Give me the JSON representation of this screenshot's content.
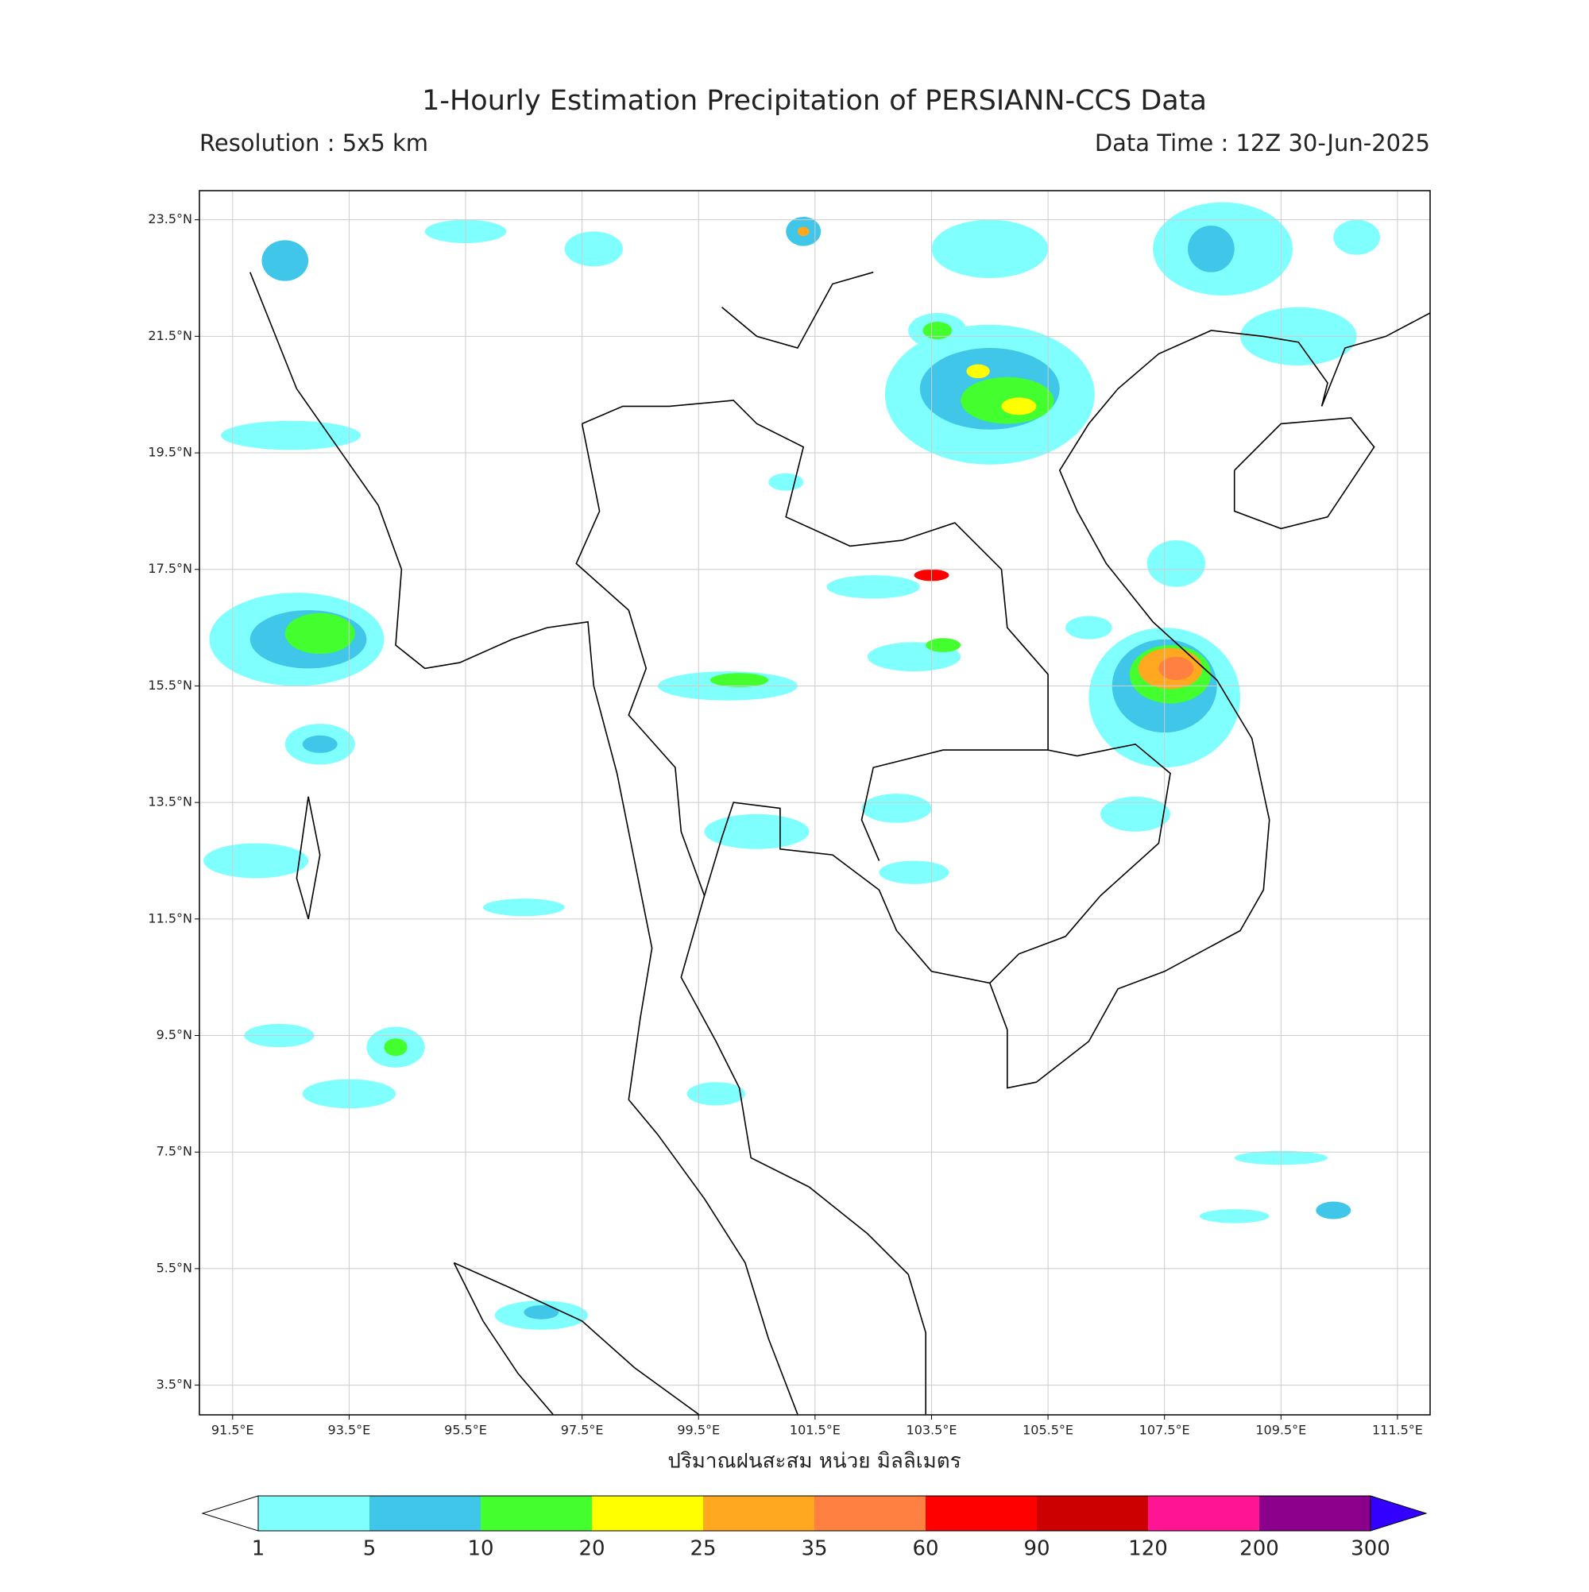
{
  "title": "1-Hourly Estimation Precipitation of PERSIANN-CCS Data",
  "resolution": "Resolution : 5x5 km",
  "data_time": "Data Time : 12Z 30-Jun-2025",
  "map": {
    "xlim": [
      90.93,
      112.06
    ],
    "ylim": [
      2.99,
      24.0
    ],
    "xticks": [
      {
        "value": 91.5,
        "label": "91.5°E"
      },
      {
        "value": 93.5,
        "label": "93.5°E"
      },
      {
        "value": 95.5,
        "label": "95.5°E"
      },
      {
        "value": 97.5,
        "label": "97.5°E"
      },
      {
        "value": 99.5,
        "label": "99.5°E"
      },
      {
        "value": 101.5,
        "label": "101.5°E"
      },
      {
        "value": 103.5,
        "label": "103.5°E"
      },
      {
        "value": 105.5,
        "label": "105.5°E"
      },
      {
        "value": 107.5,
        "label": "107.5°E"
      },
      {
        "value": 109.5,
        "label": "109.5°E"
      },
      {
        "value": 111.5,
        "label": "111.5°E"
      }
    ],
    "yticks": [
      {
        "value": 3.5,
        "label": "3.5°N"
      },
      {
        "value": 5.5,
        "label": "5.5°N"
      },
      {
        "value": 7.5,
        "label": "7.5°N"
      },
      {
        "value": 9.5,
        "label": "9.5°N"
      },
      {
        "value": 11.5,
        "label": "11.5°N"
      },
      {
        "value": 13.5,
        "label": "13.5°N"
      },
      {
        "value": 15.5,
        "label": "15.5°N"
      },
      {
        "value": 17.5,
        "label": "17.5°N"
      },
      {
        "value": 19.5,
        "label": "19.5°N"
      },
      {
        "value": 21.5,
        "label": "21.5°N"
      },
      {
        "value": 23.5,
        "label": "23.5°N"
      }
    ],
    "grid": true
  },
  "colorbar": {
    "label": "ปริมาณฝนสะสม หน่วย มิลลิเมตร",
    "levels": [
      1,
      5,
      10,
      20,
      25,
      35,
      60,
      90,
      120,
      200,
      300
    ],
    "colors": [
      "#80ffff",
      "#3fc6e8",
      "#44ff2e",
      "#ffff00",
      "#ffa820",
      "#ff8040",
      "#ff0000",
      "#cc0000",
      "#ff1493",
      "#8b008b"
    ],
    "under_color": "#ffffff",
    "over_color": "#3300ff"
  }
}
